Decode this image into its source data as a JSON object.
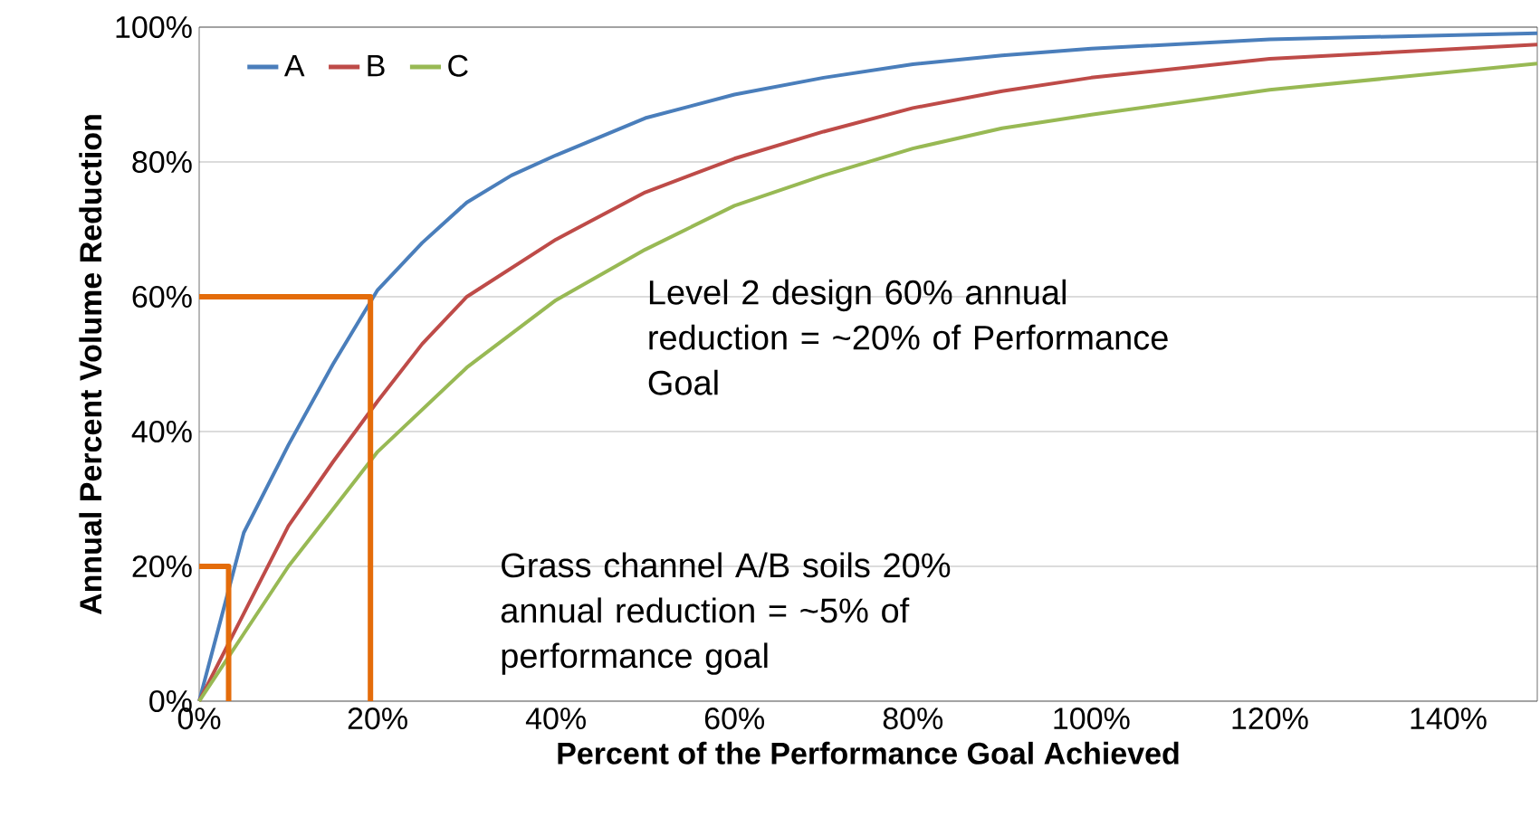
{
  "chart_data": {
    "type": "line",
    "xlabel": "Percent of the Performance Goal Achieved",
    "ylabel": "Annual Percent Volume Reduction",
    "xlim": [
      0,
      150
    ],
    "ylim": [
      0,
      100
    ],
    "xticks": [
      {
        "value": 0,
        "label": "0%"
      },
      {
        "value": 20,
        "label": "20%"
      },
      {
        "value": 40,
        "label": "40%"
      },
      {
        "value": 60,
        "label": "60%"
      },
      {
        "value": 80,
        "label": "80%"
      },
      {
        "value": 100,
        "label": "100%"
      },
      {
        "value": 120,
        "label": "120%"
      },
      {
        "value": 140,
        "label": "140%"
      }
    ],
    "yticks": [
      {
        "value": 0,
        "label": "0%"
      },
      {
        "value": 20,
        "label": "20%"
      },
      {
        "value": 40,
        "label": "40%"
      },
      {
        "value": 60,
        "label": "60%"
      },
      {
        "value": 80,
        "label": "80%"
      },
      {
        "value": 100,
        "label": "100%"
      }
    ],
    "grid": "y",
    "legend": "top left",
    "marker": "none",
    "line_style": "solid",
    "series": [
      {
        "name": "A",
        "color": "#4a7ebb",
        "x": [
          0,
          5,
          10,
          15,
          20,
          25,
          30,
          35,
          40,
          50,
          60,
          70,
          80,
          90,
          100,
          120,
          150
        ],
        "values": [
          0,
          25,
          38,
          50,
          61,
          68,
          74,
          78,
          81,
          86.5,
          90,
          92.5,
          94.5,
          95.8,
          96.8,
          98.2,
          99.1
        ]
      },
      {
        "name": "B",
        "color": "#be4b48",
        "x": [
          0,
          5,
          10,
          15,
          20,
          25,
          30,
          40,
          50,
          60,
          70,
          80,
          90,
          100,
          120,
          150
        ],
        "values": [
          0,
          13,
          26,
          35.5,
          44.5,
          53,
          60,
          68.5,
          75.5,
          80.5,
          84.5,
          88,
          90.5,
          92.5,
          95.3,
          97.4
        ]
      },
      {
        "name": "C",
        "color": "#98b954",
        "x": [
          0,
          5,
          10,
          15,
          20,
          30,
          40,
          50,
          60,
          70,
          80,
          90,
          100,
          120,
          150
        ],
        "values": [
          0,
          10,
          20,
          28.5,
          37,
          49.5,
          59.5,
          67,
          73.5,
          78,
          82,
          85,
          87,
          90.7,
          94.6
        ]
      },
      {
        "color": "#e46c0a",
        "x": [
          0,
          19.2,
          19.2
        ],
        "values": [
          60,
          60,
          0
        ]
      },
      {
        "color": "#e46c0a",
        "x": [
          0,
          3.3,
          3.3
        ],
        "values": [
          20,
          20,
          0
        ]
      }
    ],
    "annotations": [
      "Level 2 design 60% annual reduction = ~20% of Performance Goal",
      "Grass channel A/B soils 20% annual reduction = ~5% of performance goal"
    ]
  }
}
